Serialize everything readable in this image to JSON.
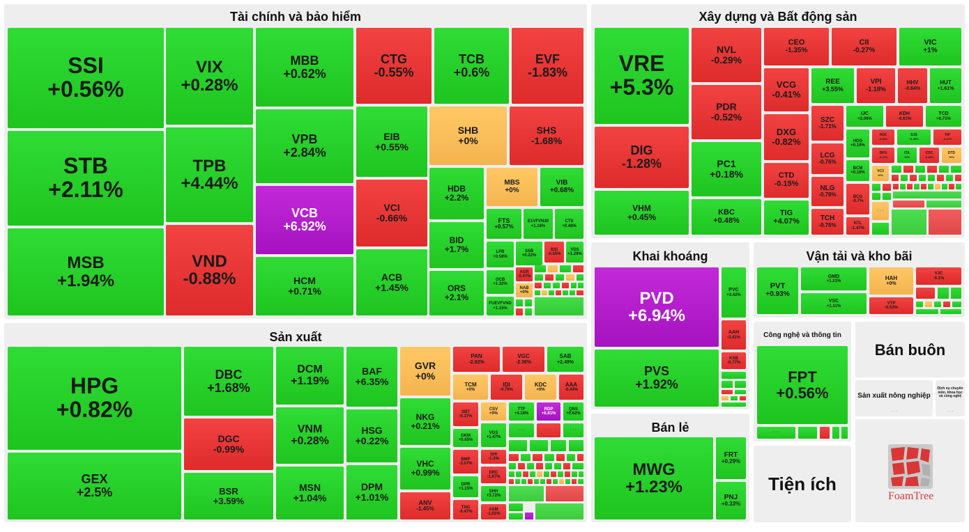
{
  "sectors": {
    "finance": {
      "title": "Tài chính và bảo hiểm",
      "stocks": [
        {
          "t": "SSI",
          "v": "+0.56%"
        },
        {
          "t": "STB",
          "v": "+2.11%"
        },
        {
          "t": "MSB",
          "v": "+1.94%"
        },
        {
          "t": "VIX",
          "v": "+0.28%"
        },
        {
          "t": "TPB",
          "v": "+4.44%"
        },
        {
          "t": "VND",
          "v": "-0.88%"
        },
        {
          "t": "MBB",
          "v": "+0.62%"
        },
        {
          "t": "VPB",
          "v": "+2.84%"
        },
        {
          "t": "VCB",
          "v": "+6.92%"
        },
        {
          "t": "HCM",
          "v": "+0.71%"
        },
        {
          "t": "CTG",
          "v": "-0.55%"
        },
        {
          "t": "TCB",
          "v": "+0.6%"
        },
        {
          "t": "EVF",
          "v": "-1.83%"
        },
        {
          "t": "EIB",
          "v": "+0.55%"
        },
        {
          "t": "SHB",
          "v": "+0%"
        },
        {
          "t": "SHS",
          "v": "-1.68%"
        },
        {
          "t": "VCI",
          "v": "-0.66%"
        },
        {
          "t": "ACB",
          "v": "+1.45%"
        },
        {
          "t": "HDB",
          "v": "+2.2%"
        },
        {
          "t": "BID",
          "v": "+1.7%"
        },
        {
          "t": "ORS",
          "v": "+2.1%"
        },
        {
          "t": "MBS",
          "v": "+0%"
        },
        {
          "t": "VIB",
          "v": "+0.68%"
        },
        {
          "t": "FTS",
          "v": "+0.57%"
        },
        {
          "t": "E1VFVN30",
          "v": "+1.16%"
        },
        {
          "t": "CTS",
          "v": "+0.48%"
        },
        {
          "t": "LPB",
          "v": "+0.58%"
        },
        {
          "t": "SSB",
          "v": "+0.22%"
        },
        {
          "t": "BSI",
          "v": "-0.55%"
        },
        {
          "t": "VDS",
          "v": "+1.29%"
        },
        {
          "t": "OCB",
          "v": "+1.32%"
        },
        {
          "t": "AGR",
          "v": "-0.47%"
        },
        {
          "t": "NAB",
          "v": "+0%"
        },
        {
          "t": "FUEVFVND",
          "v": "+1.15%"
        }
      ]
    },
    "construction": {
      "title": "Xây dựng và Bất động sản",
      "stocks": [
        {
          "t": "VRE",
          "v": "+5.3%"
        },
        {
          "t": "DIG",
          "v": "-1.28%"
        },
        {
          "t": "VHM",
          "v": "+0.45%"
        },
        {
          "t": "NVL",
          "v": "-0.29%"
        },
        {
          "t": "PDR",
          "v": "-0.52%"
        },
        {
          "t": "PC1",
          "v": "+0.18%"
        },
        {
          "t": "KBC",
          "v": "+0.48%"
        },
        {
          "t": "CEO",
          "v": "-1.35%"
        },
        {
          "t": "CII",
          "v": "-0.27%"
        },
        {
          "t": "VIC",
          "v": "+1%"
        },
        {
          "t": "VCG",
          "v": "-0.41%"
        },
        {
          "t": "DXG",
          "v": "-0.82%"
        },
        {
          "t": "CTD",
          "v": "-0.15%"
        },
        {
          "t": "TIG",
          "v": "+4.07%"
        },
        {
          "t": "REE",
          "v": "+3.55%"
        },
        {
          "t": "VPI",
          "v": "-1.18%"
        },
        {
          "t": "HHV",
          "v": "-0.64%"
        },
        {
          "t": "HUT",
          "v": "+1.61%"
        },
        {
          "t": "SZC",
          "v": "-1.71%"
        },
        {
          "t": "LCG",
          "v": "-0.76%"
        },
        {
          "t": "NLG",
          "v": "-0.78%"
        },
        {
          "t": "TCH",
          "v": "-0.76%"
        },
        {
          "t": "IJC",
          "v": "+2.06%"
        },
        {
          "t": "KDH",
          "v": "-0.61%"
        },
        {
          "t": "TCD",
          "v": "+6.71%"
        },
        {
          "t": "HDG",
          "v": "+0.19%"
        },
        {
          "t": "HDC",
          "v": "-0.85%"
        },
        {
          "t": "SJS",
          "v": "+1.35%"
        },
        {
          "t": "TIP",
          "v": "-3.47%"
        },
        {
          "t": "DPG",
          "v": "-0.12%"
        },
        {
          "t": "ITA",
          "v": "+0%"
        },
        {
          "t": "CDC",
          "v": "-0.35%"
        },
        {
          "t": "DTD",
          "v": "+0%"
        },
        {
          "t": "BCM",
          "v": "+0.16%"
        },
        {
          "t": "VC3",
          "v": "+0%"
        },
        {
          "t": "BCG",
          "v": "-0.7%"
        },
        {
          "t": "NTL",
          "v": "-1.47%"
        }
      ]
    },
    "mining": {
      "title": "Khai khoáng",
      "stocks": [
        {
          "t": "PVD",
          "v": "+6.94%"
        },
        {
          "t": "PVS",
          "v": "+1.92%"
        },
        {
          "t": "PVC",
          "v": "+3.42%"
        },
        {
          "t": "AAH",
          "v": "-3.41%"
        },
        {
          "t": "KSB",
          "v": "-0.77%"
        }
      ]
    },
    "transport": {
      "title": "Vận tải và kho bãi",
      "stocks": [
        {
          "t": "PVT",
          "v": "+0.93%"
        },
        {
          "t": "GMD",
          "v": "+1.21%"
        },
        {
          "t": "VSC",
          "v": "+1.11%"
        },
        {
          "t": "HAH",
          "v": "+0%"
        },
        {
          "t": "VJC",
          "v": "-0.1%"
        },
        {
          "t": "VTP",
          "v": "-0.53%"
        }
      ]
    },
    "tech": {
      "title": "Công nghệ và thông tin",
      "stocks": [
        {
          "t": "FPT",
          "v": "+0.56%"
        }
      ]
    },
    "wholesale": {
      "title": "Bán buôn"
    },
    "agri": {
      "title": "Sản xuất nông nghiệp"
    },
    "services": {
      "title": "Dịch vụ chuyên môn, khoa học và công nghệ"
    },
    "utilities": {
      "title": "Tiện ích"
    },
    "retail": {
      "title": "Bán lẻ",
      "stocks": [
        {
          "t": "MWG",
          "v": "+1.23%"
        },
        {
          "t": "FRT",
          "v": "+0.29%"
        },
        {
          "t": "PNJ",
          "v": "+0.33%"
        }
      ]
    },
    "manufacturing": {
      "title": "Sản xuất",
      "stocks": [
        {
          "t": "HPG",
          "v": "+0.82%"
        },
        {
          "t": "GEX",
          "v": "+2.5%"
        },
        {
          "t": "DBC",
          "v": "+1.68%"
        },
        {
          "t": "DGC",
          "v": "-0.99%"
        },
        {
          "t": "BSR",
          "v": "+3.59%"
        },
        {
          "t": "DCM",
          "v": "+1.19%"
        },
        {
          "t": "VNM",
          "v": "+0.28%"
        },
        {
          "t": "MSN",
          "v": "+1.04%"
        },
        {
          "t": "BAF",
          "v": "+6.35%"
        },
        {
          "t": "HSG",
          "v": "+0.22%"
        },
        {
          "t": "DPM",
          "v": "+1.01%"
        },
        {
          "t": "GVR",
          "v": "+0%"
        },
        {
          "t": "NKG",
          "v": "+0.21%"
        },
        {
          "t": "VHC",
          "v": "+0.99%"
        },
        {
          "t": "ANV",
          "v": "-1.45%"
        },
        {
          "t": "PAN",
          "v": "-2.92%"
        },
        {
          "t": "VGC",
          "v": "-2.36%"
        },
        {
          "t": "SAB",
          "v": "+2.49%"
        },
        {
          "t": "TCM",
          "v": "+0%"
        },
        {
          "t": "IDI",
          "v": "-0.79%"
        },
        {
          "t": "KDC",
          "v": "+0%"
        },
        {
          "t": "AAA",
          "v": "-0.44%"
        },
        {
          "t": "SBT",
          "v": "-0.37%"
        },
        {
          "t": "CSV",
          "v": "+0%"
        },
        {
          "t": "TTF",
          "v": "+4.18%"
        },
        {
          "t": "RDP",
          "v": "+6.81%"
        },
        {
          "t": "QNS",
          "v": "+0.62%"
        },
        {
          "t": "GKM",
          "v": "+0.65%"
        },
        {
          "t": "VGS",
          "v": "+1.47%"
        },
        {
          "t": "BMP",
          "v": "-3.07%"
        },
        {
          "t": "SHI",
          "v": "-1.3%"
        },
        {
          "t": "DPR",
          "v": "+1.15%"
        },
        {
          "t": "DRC",
          "v": "-1.67%"
        },
        {
          "t": "SHH",
          "v": "+3.72%"
        },
        {
          "t": "TNG",
          "v": "-0.47%"
        },
        {
          "t": "ASM",
          "v": "-1.01%"
        }
      ]
    }
  },
  "misc": {
    "dots": "· · ·",
    "brand": "FoamTree"
  },
  "colors": {
    "up": "#22cc22",
    "down": "#e33434",
    "flat": "#f6ba57",
    "ceiling": "#b31ccc"
  }
}
